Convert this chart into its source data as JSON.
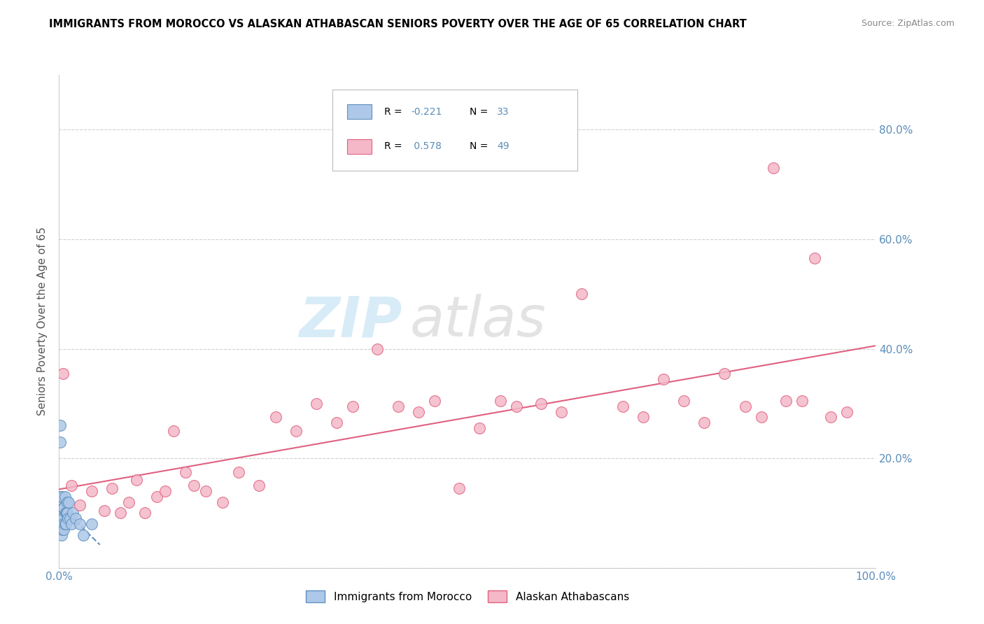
{
  "title": "IMMIGRANTS FROM MOROCCO VS ALASKAN ATHABASCAN SENIORS POVERTY OVER THE AGE OF 65 CORRELATION CHART",
  "source": "Source: ZipAtlas.com",
  "ylabel": "Seniors Poverty Over the Age of 65",
  "xlim": [
    0,
    1.0
  ],
  "ylim": [
    0,
    0.9
  ],
  "yticks": [
    0.0,
    0.2,
    0.4,
    0.6,
    0.8
  ],
  "ytick_labels": [
    "",
    "20.0%",
    "40.0%",
    "60.0%",
    "80.0%"
  ],
  "xticks": [
    0.0,
    1.0
  ],
  "xtick_labels": [
    "0.0%",
    "100.0%"
  ],
  "color_morocco": "#adc8e8",
  "color_athabascan": "#f4b8c8",
  "line_color_morocco": "#6090c0",
  "line_color_athabascan": "#e06080",
  "tick_color": "#5b8db8",
  "grid_color": "#cccccc",
  "morocco_x": [
    0.001,
    0.001,
    0.001,
    0.002,
    0.002,
    0.002,
    0.003,
    0.003,
    0.003,
    0.004,
    0.004,
    0.004,
    0.005,
    0.005,
    0.005,
    0.006,
    0.006,
    0.007,
    0.007,
    0.008,
    0.008,
    0.009,
    0.01,
    0.01,
    0.011,
    0.012,
    0.013,
    0.015,
    0.017,
    0.02,
    0.025,
    0.03,
    0.04
  ],
  "morocco_y": [
    0.26,
    0.23,
    0.13,
    0.09,
    0.09,
    0.07,
    0.1,
    0.08,
    0.06,
    0.07,
    0.13,
    0.09,
    0.09,
    0.11,
    0.08,
    0.11,
    0.07,
    0.08,
    0.13,
    0.1,
    0.08,
    0.1,
    0.1,
    0.12,
    0.09,
    0.12,
    0.09,
    0.08,
    0.1,
    0.09,
    0.08,
    0.06,
    0.08
  ],
  "athabascan_x": [
    0.005,
    0.015,
    0.025,
    0.04,
    0.055,
    0.065,
    0.075,
    0.085,
    0.095,
    0.105,
    0.12,
    0.13,
    0.14,
    0.155,
    0.165,
    0.18,
    0.2,
    0.22,
    0.245,
    0.265,
    0.29,
    0.315,
    0.34,
    0.36,
    0.39,
    0.415,
    0.44,
    0.46,
    0.49,
    0.515,
    0.54,
    0.56,
    0.59,
    0.615,
    0.64,
    0.69,
    0.715,
    0.74,
    0.765,
    0.79,
    0.815,
    0.84,
    0.86,
    0.875,
    0.89,
    0.91,
    0.925,
    0.945,
    0.965
  ],
  "athabascan_y": [
    0.355,
    0.15,
    0.115,
    0.14,
    0.105,
    0.145,
    0.1,
    0.12,
    0.16,
    0.1,
    0.13,
    0.14,
    0.25,
    0.175,
    0.15,
    0.14,
    0.12,
    0.175,
    0.15,
    0.275,
    0.25,
    0.3,
    0.265,
    0.295,
    0.4,
    0.295,
    0.285,
    0.305,
    0.145,
    0.255,
    0.305,
    0.295,
    0.3,
    0.285,
    0.5,
    0.295,
    0.275,
    0.345,
    0.305,
    0.265,
    0.355,
    0.295,
    0.275,
    0.73,
    0.305,
    0.305,
    0.565,
    0.275,
    0.285
  ]
}
